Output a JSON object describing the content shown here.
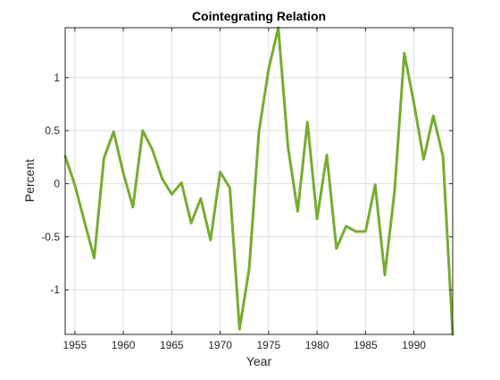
{
  "chart_data": {
    "type": "line",
    "title": "Cointegrating  Relation",
    "xlabel": "Year",
    "ylabel": "Percent",
    "xlim": [
      1954,
      1994
    ],
    "ylim": [
      -1.42,
      1.47
    ],
    "xticks": [
      1955,
      1960,
      1965,
      1970,
      1975,
      1980,
      1985,
      1990
    ],
    "yticks": [
      -1,
      -0.5,
      0,
      0.5,
      1
    ],
    "ytick_labels": [
      "-1",
      "-0.5",
      "0",
      "0.5",
      "1"
    ],
    "grid": true,
    "series": [
      {
        "color": "#77AC30",
        "x": [
          1954,
          1955,
          1956,
          1957,
          1958,
          1959,
          1960,
          1961,
          1962,
          1963,
          1964,
          1965,
          1966,
          1967,
          1968,
          1969,
          1970,
          1971,
          1972,
          1973,
          1974,
          1975,
          1976,
          1977,
          1978,
          1979,
          1980,
          1981,
          1982,
          1983,
          1984,
          1985,
          1986,
          1987,
          1988,
          1989,
          1990,
          1991,
          1992,
          1993,
          1994
        ],
        "y": [
          0.26,
          -0.01,
          -0.36,
          -0.7,
          0.24,
          0.49,
          0.1,
          -0.22,
          0.5,
          0.32,
          0.05,
          -0.1,
          0.01,
          -0.37,
          -0.14,
          -0.53,
          0.11,
          -0.04,
          -1.37,
          -0.8,
          0.49,
          1.08,
          1.47,
          0.35,
          -0.26,
          0.58,
          -0.33,
          0.27,
          -0.61,
          -0.4,
          -0.45,
          -0.45,
          -0.01,
          -0.86,
          -0.07,
          1.23,
          0.76,
          0.23,
          0.64,
          0.26,
          -1.42
        ]
      }
    ]
  }
}
